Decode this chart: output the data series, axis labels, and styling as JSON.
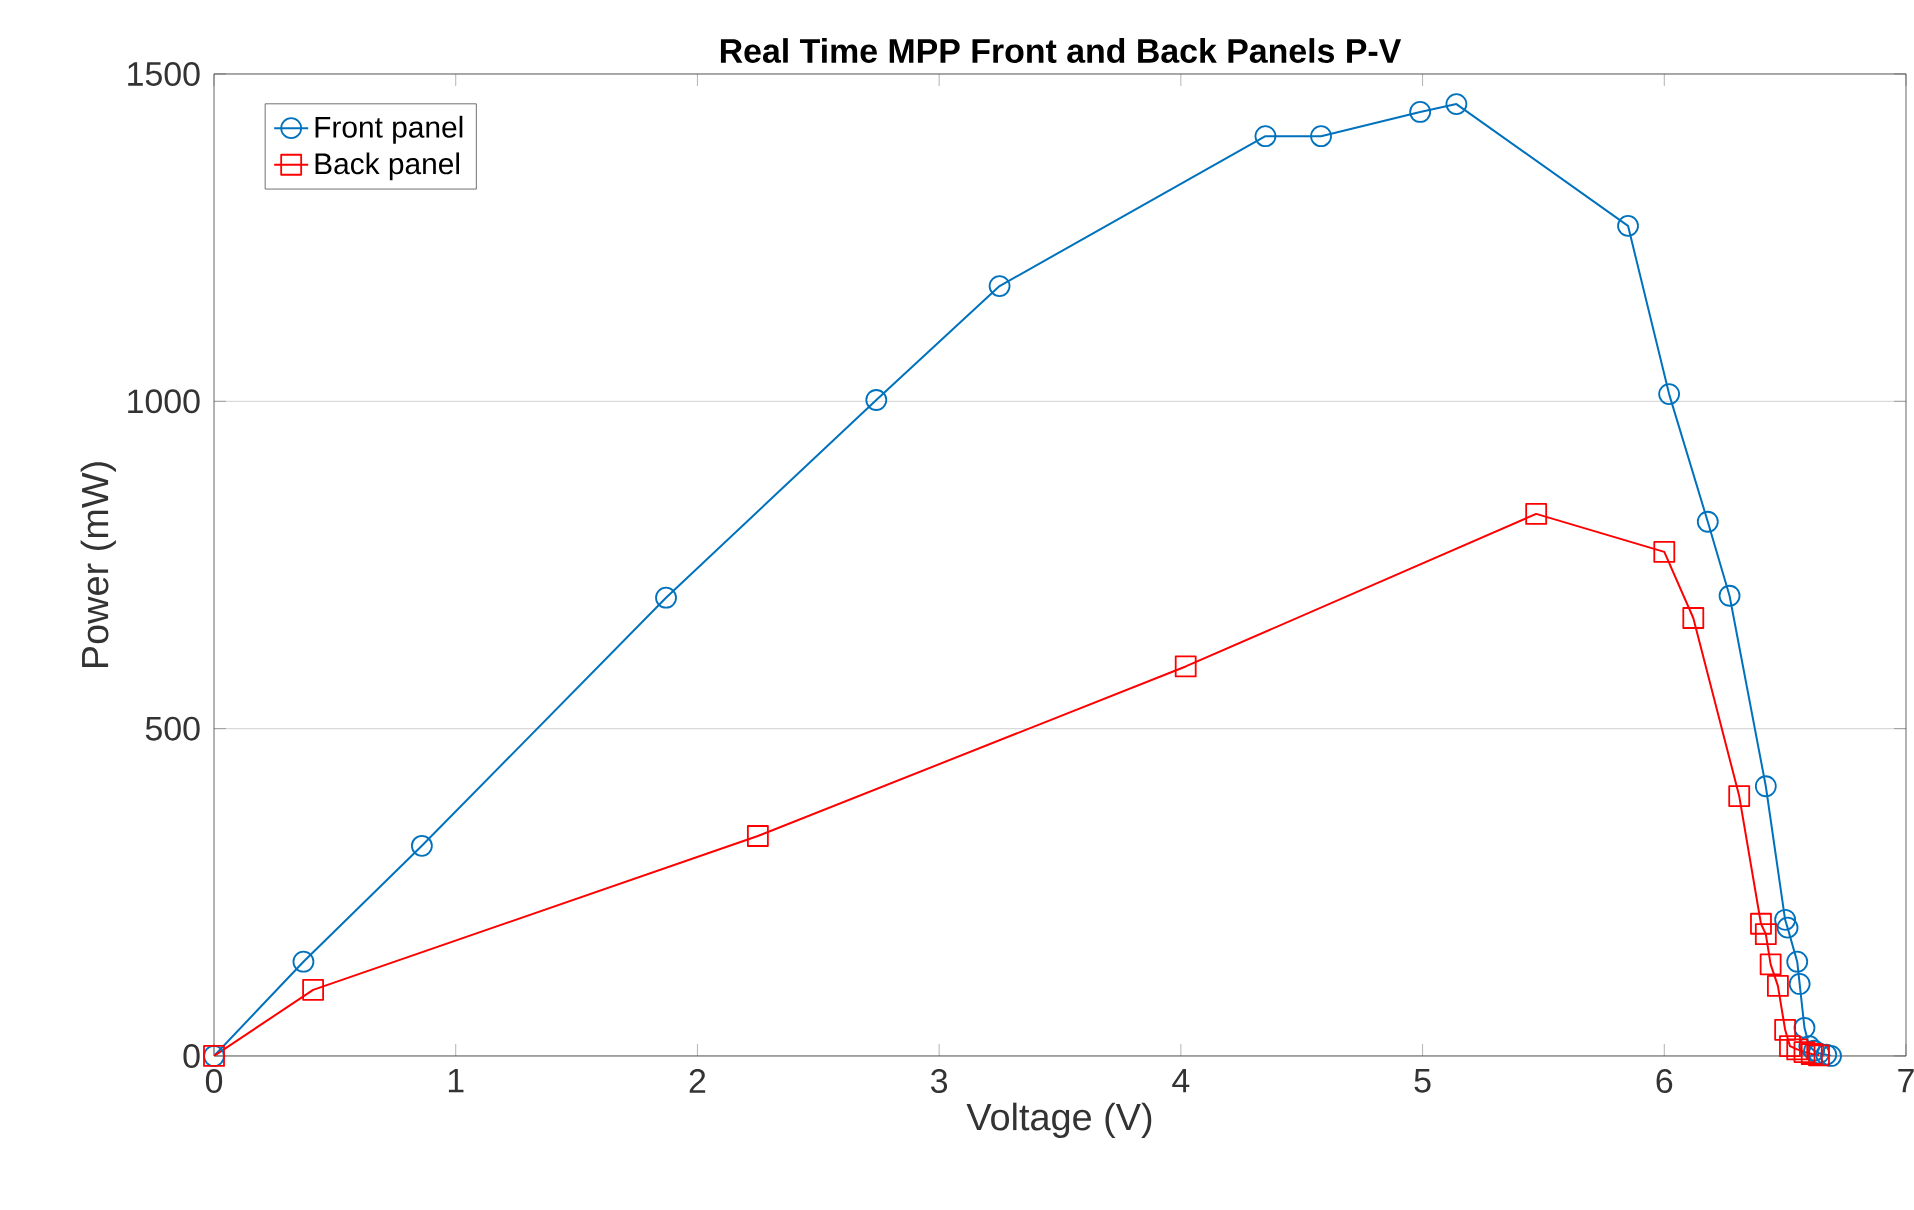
{
  "chart_data": {
    "type": "line",
    "title": "Real Time MPP Front and Back Panels P-V",
    "xlabel": "Voltage (V)",
    "ylabel": "Power (mW)",
    "xlim": [
      0,
      7
    ],
    "ylim": [
      0,
      1500
    ],
    "xticks": [
      0,
      1,
      2,
      3,
      4,
      5,
      6,
      7
    ],
    "yticks": [
      0,
      500,
      1000,
      1500
    ],
    "grid": "y",
    "legend": "top left",
    "line_style": "solid",
    "series": [
      {
        "name": "Front panel",
        "color": "#0072bd",
        "marker": "circle",
        "x": [
          0,
          0.37,
          0.86,
          1.87,
          2.74,
          3.25,
          4.35,
          4.58,
          4.99,
          5.14,
          5.85,
          6.02,
          6.18,
          6.27,
          6.42,
          6.5,
          6.51,
          6.55,
          6.56,
          6.58,
          6.6,
          6.62,
          6.64,
          6.67,
          6.69
        ],
        "values": [
          0,
          144,
          321,
          700,
          1002,
          1176,
          1405,
          1405,
          1442,
          1454,
          1268,
          1011,
          816,
          703,
          412,
          208,
          196,
          144,
          110,
          43,
          15,
          8,
          4,
          2,
          0
        ]
      },
      {
        "name": "Back panel",
        "color": "#ff0000",
        "marker": "square",
        "x": [
          0,
          0.41,
          2.25,
          4.02,
          5.47,
          6.0,
          6.12,
          6.31,
          6.4,
          6.42,
          6.44,
          6.47,
          6.5,
          6.52,
          6.55,
          6.58,
          6.61,
          6.64
        ],
        "values": [
          0,
          101,
          336,
          595,
          828,
          770,
          669,
          397,
          202,
          186,
          140,
          107,
          40,
          15,
          10,
          6,
          3,
          1
        ]
      }
    ]
  }
}
